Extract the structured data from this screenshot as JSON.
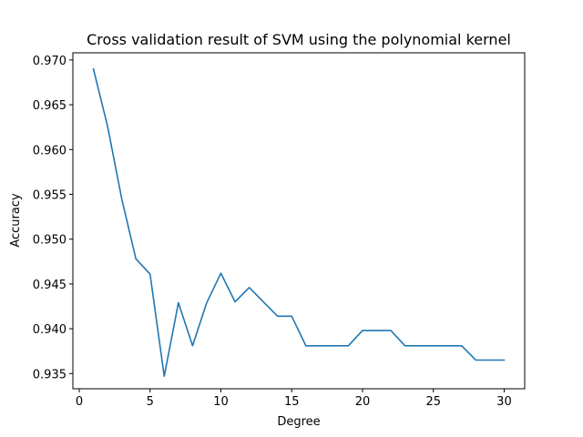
{
  "chart_data": {
    "type": "line",
    "title": "Cross validation result of SVM using the polynomial kernel",
    "xlabel": "Degree",
    "ylabel": "Accuracy",
    "xlim": [
      -0.45,
      31.45
    ],
    "ylim": [
      0.9333,
      0.9708
    ],
    "xticks": [
      0,
      5,
      10,
      15,
      20,
      25,
      30
    ],
    "xtick_labels": [
      "0",
      "5",
      "10",
      "15",
      "20",
      "25",
      "30"
    ],
    "yticks": [
      0.935,
      0.94,
      0.945,
      0.95,
      0.955,
      0.96,
      0.965,
      0.97
    ],
    "ytick_labels": [
      "0.935",
      "0.940",
      "0.945",
      "0.950",
      "0.955",
      "0.960",
      "0.965",
      "0.970"
    ],
    "grid": false,
    "legend": "none",
    "series": [
      {
        "name": "accuracy",
        "color": "#1f77b4",
        "x": [
          1,
          2,
          3,
          4,
          5,
          6,
          7,
          8,
          9,
          10,
          11,
          12,
          13,
          14,
          15,
          16,
          17,
          18,
          19,
          20,
          21,
          22,
          23,
          24,
          25,
          26,
          27,
          28,
          29,
          30
        ],
        "values": [
          0.969,
          0.9626,
          0.9545,
          0.9478,
          0.9461,
          0.9347,
          0.9429,
          0.9381,
          0.9429,
          0.9462,
          0.943,
          0.9446,
          0.943,
          0.9414,
          0.9414,
          0.9381,
          0.9381,
          0.9381,
          0.9381,
          0.9398,
          0.9398,
          0.9398,
          0.9381,
          0.9381,
          0.9381,
          0.9381,
          0.9381,
          0.9365,
          0.9365,
          0.9365
        ]
      }
    ]
  }
}
